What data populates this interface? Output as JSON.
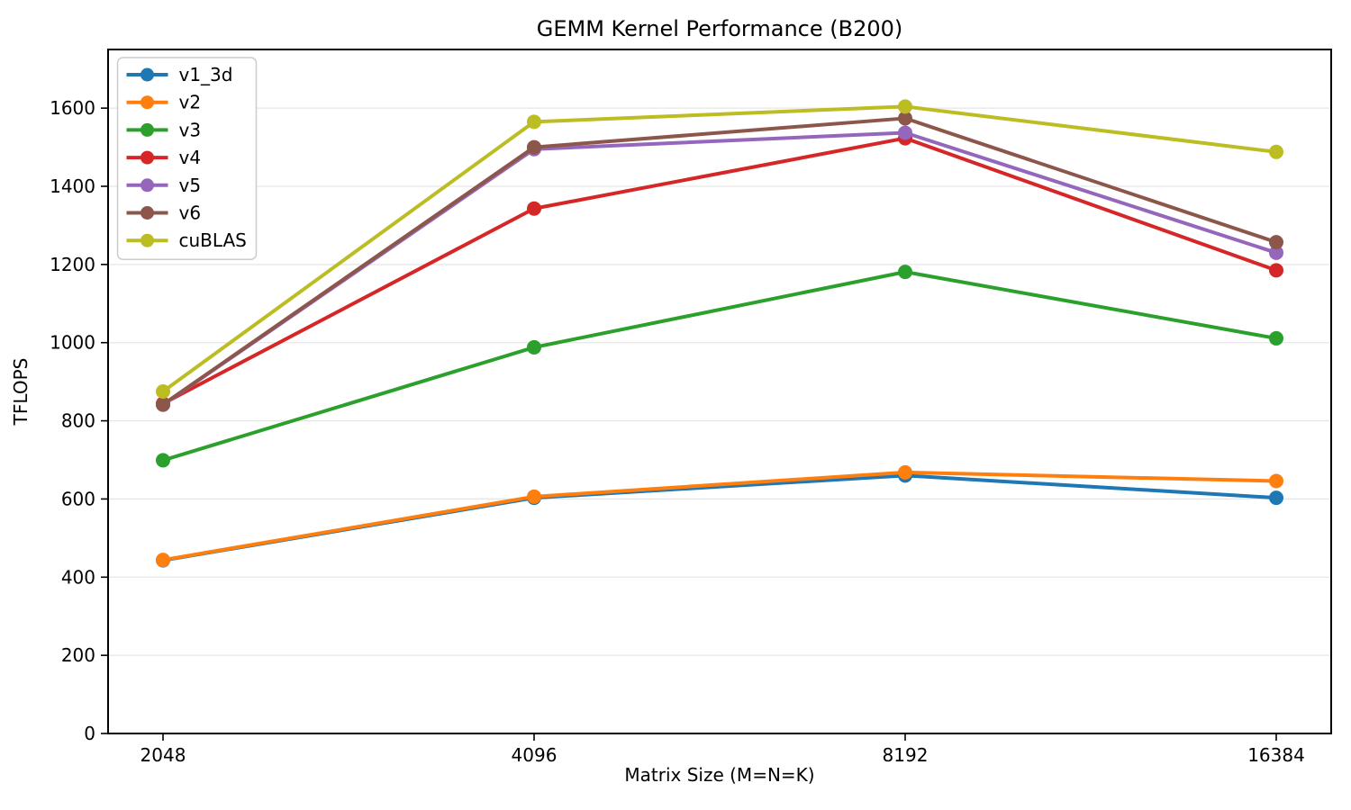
{
  "chart_data": {
    "type": "line",
    "title": "GEMM Kernel Performance (B200)",
    "xlabel": "Matrix Size (M=N=K)",
    "ylabel": "TFLOPS",
    "categories": [
      "2048",
      "4096",
      "8192",
      "16384"
    ],
    "series": [
      {
        "name": "v1_3d",
        "color": "#1f77b4",
        "values": [
          443,
          603,
          660,
          603
        ]
      },
      {
        "name": "v2",
        "color": "#ff7f0e",
        "values": [
          444,
          606,
          668,
          646
        ]
      },
      {
        "name": "v3",
        "color": "#2ca02c",
        "values": [
          699,
          988,
          1181,
          1011
        ]
      },
      {
        "name": "v4",
        "color": "#d62728",
        "values": [
          844,
          1343,
          1523,
          1185
        ]
      },
      {
        "name": "v5",
        "color": "#9467bd",
        "values": [
          841,
          1495,
          1537,
          1230
        ]
      },
      {
        "name": "v6",
        "color": "#8c564b",
        "values": [
          842,
          1500,
          1574,
          1257
        ]
      },
      {
        "name": "cuBLAS",
        "color": "#bcbd22",
        "values": [
          875,
          1565,
          1604,
          1488
        ]
      }
    ],
    "ylim": [
      0,
      1750
    ],
    "yticks": [
      0,
      200,
      400,
      600,
      800,
      1000,
      1200,
      1400,
      1600
    ],
    "grid": "horizontal",
    "grid_color": "#e6e6e6",
    "spine_color": "#000000",
    "legend_position": "upper-left",
    "legend_border_color": "#cccccc",
    "background": "#ffffff"
  }
}
